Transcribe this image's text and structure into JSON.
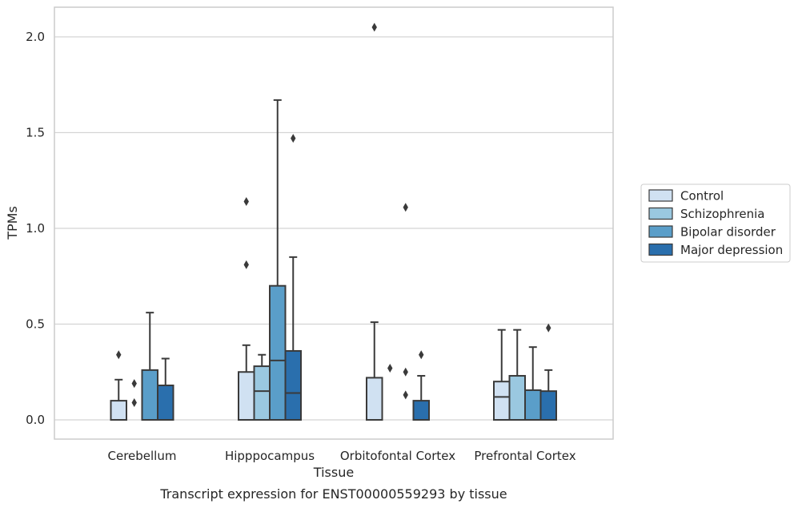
{
  "chart_data": {
    "type": "box",
    "xlabel": "Tissue",
    "ylabel": "TPMs",
    "caption": "Transcript expression for ENST00000559293 by tissue",
    "ylim": [
      -0.1,
      2.15
    ],
    "yticks": [
      0.0,
      0.5,
      1.0,
      1.5,
      2.0
    ],
    "ytick_labels": [
      "0.0",
      "0.5",
      "1.0",
      "1.5",
      "2.0"
    ],
    "grid": true,
    "legend_position": "right",
    "categories": [
      "Cerebellum",
      "Hipppocampus",
      "Orbitofontal Cortex",
      "Prefrontal Cortex"
    ],
    "series": [
      {
        "name": "Control",
        "color": "#d0e1f2",
        "boxes": [
          {
            "q1": 0.0,
            "median": 0.0,
            "q3": 0.1,
            "whisker_low": 0.0,
            "whisker_high": 0.21,
            "outliers": [
              0.34
            ]
          },
          {
            "q1": 0.0,
            "median": 0.0,
            "q3": 0.25,
            "whisker_low": 0.0,
            "whisker_high": 0.39,
            "outliers": [
              0.81,
              1.14
            ]
          },
          {
            "q1": 0.0,
            "median": 0.0,
            "q3": 0.22,
            "whisker_low": 0.0,
            "whisker_high": 0.51,
            "outliers": [
              2.05
            ]
          },
          {
            "q1": 0.0,
            "median": 0.12,
            "q3": 0.2,
            "whisker_low": 0.0,
            "whisker_high": 0.47,
            "outliers": []
          }
        ]
      },
      {
        "name": "Schizophrenia",
        "color": "#9ac8e0",
        "boxes": [
          {
            "q1": 0.0,
            "median": 0.0,
            "q3": 0.0,
            "whisker_low": 0.0,
            "whisker_high": 0.0,
            "outliers": [
              0.09,
              0.19
            ]
          },
          {
            "q1": 0.0,
            "median": 0.15,
            "q3": 0.28,
            "whisker_low": 0.0,
            "whisker_high": 0.34,
            "outliers": []
          },
          {
            "q1": 0.0,
            "median": 0.0,
            "q3": 0.0,
            "whisker_low": 0.0,
            "whisker_high": 0.0,
            "outliers": [
              0.27
            ]
          },
          {
            "q1": 0.0,
            "median": 0.0,
            "q3": 0.23,
            "whisker_low": 0.0,
            "whisker_high": 0.47,
            "outliers": []
          }
        ]
      },
      {
        "name": "Bipolar disorder",
        "color": "#5a9ec9",
        "boxes": [
          {
            "q1": 0.0,
            "median": 0.0,
            "q3": 0.26,
            "whisker_low": 0.0,
            "whisker_high": 0.56,
            "outliers": []
          },
          {
            "q1": 0.0,
            "median": 0.31,
            "q3": 0.7,
            "whisker_low": 0.0,
            "whisker_high": 1.67,
            "outliers": []
          },
          {
            "q1": 0.0,
            "median": 0.0,
            "q3": 0.0,
            "whisker_low": 0.0,
            "whisker_high": 0.0,
            "outliers": [
              0.13,
              0.25,
              1.11
            ]
          },
          {
            "q1": 0.0,
            "median": 0.0,
            "q3": 0.155,
            "whisker_low": 0.0,
            "whisker_high": 0.38,
            "outliers": []
          }
        ]
      },
      {
        "name": "Major depression",
        "color": "#2a6fad",
        "boxes": [
          {
            "q1": 0.0,
            "median": 0.0,
            "q3": 0.18,
            "whisker_low": 0.0,
            "whisker_high": 0.32,
            "outliers": []
          },
          {
            "q1": 0.0,
            "median": 0.14,
            "q3": 0.36,
            "whisker_low": 0.0,
            "whisker_high": 0.85,
            "outliers": [
              1.47
            ]
          },
          {
            "q1": 0.0,
            "median": 0.0,
            "q3": 0.1,
            "whisker_low": 0.0,
            "whisker_high": 0.23,
            "outliers": [
              0.34
            ]
          },
          {
            "q1": 0.0,
            "median": 0.0,
            "q3": 0.15,
            "whisker_low": 0.0,
            "whisker_high": 0.26,
            "outliers": [
              0.48
            ]
          }
        ]
      }
    ]
  }
}
